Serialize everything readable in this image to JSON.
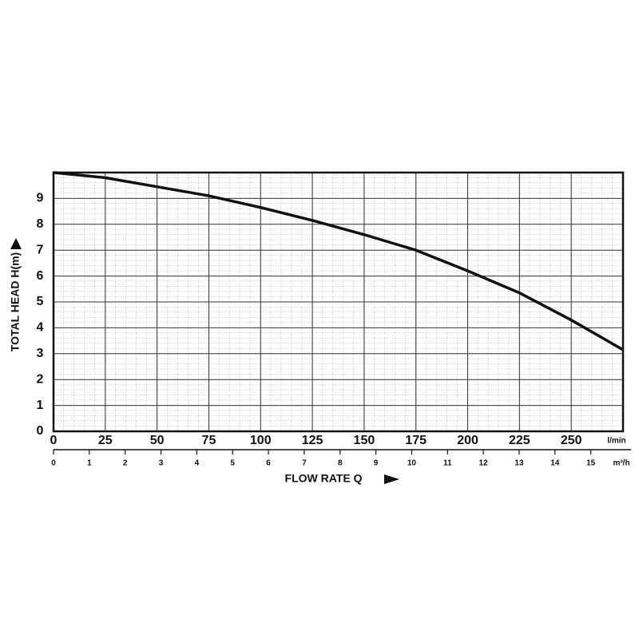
{
  "chart_data": {
    "type": "line",
    "ylabel": "TOTAL HEAD H(m)",
    "xlabel": "FLOW RATE Q",
    "x_unit": "l/min",
    "x2_unit": "m³/h",
    "x": [
      0,
      25,
      50,
      75,
      100,
      125,
      150,
      175,
      200,
      225,
      250,
      275
    ],
    "series": [
      {
        "color": "#111111",
        "values": [
          10,
          9.8,
          9.45,
          9.1,
          8.65,
          8.15,
          7.6,
          7.0,
          6.2,
          5.35,
          4.3,
          3.15
        ]
      }
    ],
    "xlim": [
      0,
      275
    ],
    "xticks": [
      0,
      25,
      50,
      75,
      100,
      125,
      150,
      175,
      200,
      225,
      250
    ],
    "x2lim": [
      0,
      15.9
    ],
    "x2ticks": [
      0,
      1,
      2,
      3,
      4,
      5,
      6,
      7,
      8,
      9,
      10,
      11,
      12,
      13,
      14,
      15
    ],
    "ylim": [
      0,
      10
    ],
    "yticks": [
      0,
      1,
      2,
      3,
      4,
      5,
      6,
      7,
      8,
      9
    ],
    "grid": true
  }
}
